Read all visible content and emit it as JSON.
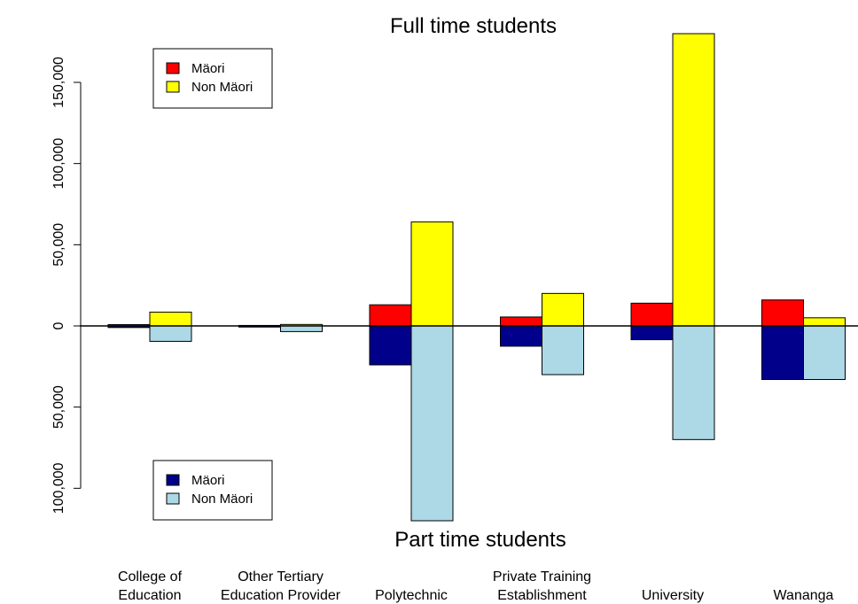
{
  "chart_data": {
    "type": "bar",
    "title_top": "Full time students",
    "title_bottom": "Part time students",
    "categories": [
      [
        "College of",
        "Education"
      ],
      [
        "Other Tertiary",
        "Education Provider"
      ],
      [
        "Polytechnic"
      ],
      [
        "Private Training",
        "Establishment"
      ],
      [
        "University"
      ],
      [
        "Wananga"
      ]
    ],
    "full_time": {
      "series": [
        {
          "name": "Mäori",
          "color": "#ff0000",
          "values": [
            800,
            300,
            13000,
            5500,
            14000,
            16000
          ]
        },
        {
          "name": "Non Mäori",
          "color": "#ffff00",
          "values": [
            8500,
            900,
            64000,
            20000,
            180000,
            5000
          ]
        }
      ]
    },
    "part_time": {
      "series": [
        {
          "name": "Mäori",
          "color": "#00008b",
          "values": [
            1000,
            700,
            24000,
            12500,
            8500,
            33000
          ]
        },
        {
          "name": "Non Mäori",
          "color": "#add8e6",
          "values": [
            9500,
            3500,
            120000,
            30000,
            70000,
            33000
          ]
        }
      ]
    },
    "y_ticks_top": [
      {
        "value": 0,
        "label": "0"
      },
      {
        "value": 50000,
        "label": "50,000"
      },
      {
        "value": 100000,
        "label": "100,000"
      },
      {
        "value": 150000,
        "label": "150,000"
      }
    ],
    "y_ticks_bottom": [
      {
        "value": 50000,
        "label": "50,000"
      },
      {
        "value": 100000,
        "label": "100,000"
      }
    ],
    "legend_top_position": "top-left",
    "legend_bottom_position": "bottom-left",
    "grid": false
  }
}
